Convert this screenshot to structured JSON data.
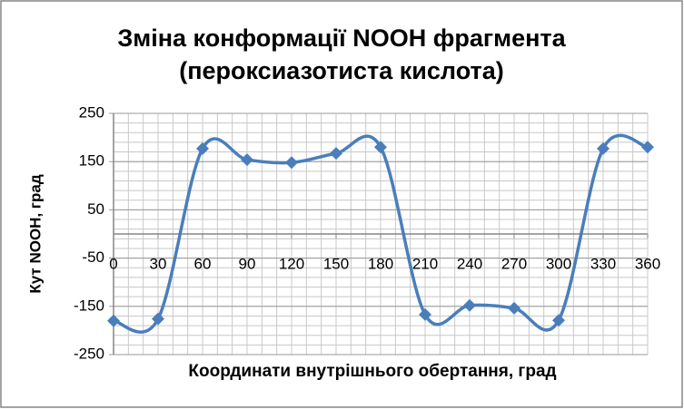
{
  "chart_data": {
    "type": "line",
    "title": [
      "Зміна конформації NOOH фрагмента",
      "(пероксиазотиста кислота)"
    ],
    "x_label": "Координати внутрішнього обертання, град",
    "y_label": "Кут NOOH, град",
    "x": [
      0,
      30,
      60,
      90,
      120,
      150,
      180,
      210,
      240,
      270,
      300,
      330,
      360
    ],
    "series": [
      {
        "name": "Кут NOOH",
        "color": "#4a7ebb",
        "values": [
          -180,
          -176,
          177,
          154,
          148,
          167,
          180,
          -167,
          -148,
          -154,
          -179,
          177,
          180
        ]
      }
    ],
    "xlim": [
      0,
      360
    ],
    "xticks": [
      0,
      30,
      60,
      90,
      120,
      150,
      180,
      210,
      240,
      270,
      300,
      330,
      360
    ],
    "ylim": [
      -250,
      250
    ],
    "yticks": [
      250,
      150,
      50,
      -50,
      -150,
      -250
    ],
    "grid": true,
    "smooth": true,
    "legend": false
  }
}
